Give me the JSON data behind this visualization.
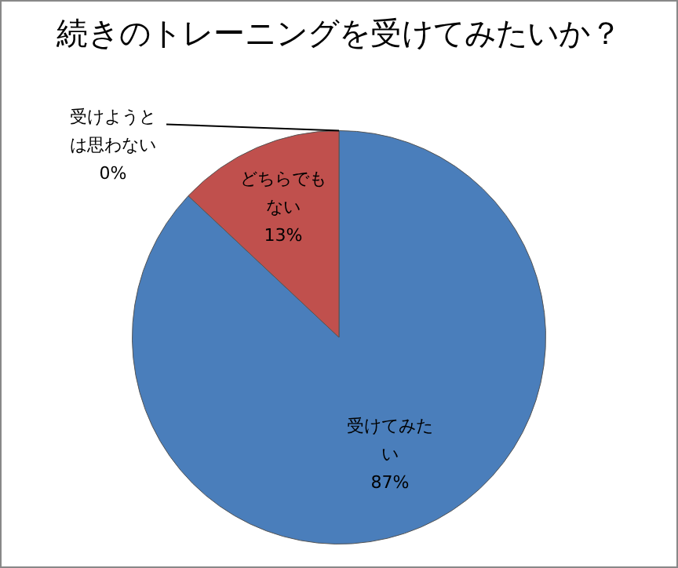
{
  "chart_data": {
    "type": "pie",
    "title": "続きのトレーニングを受けてみたいか？",
    "categories": [
      "受けてみたい",
      "どちらでもない",
      "受けようとは思わない"
    ],
    "values": [
      87,
      13,
      0
    ],
    "value_labels": [
      "87%",
      "13%",
      "0%"
    ],
    "colors": [
      "#4a7ebb",
      "#c0504d",
      "#9bbb59"
    ],
    "legend": false
  }
}
